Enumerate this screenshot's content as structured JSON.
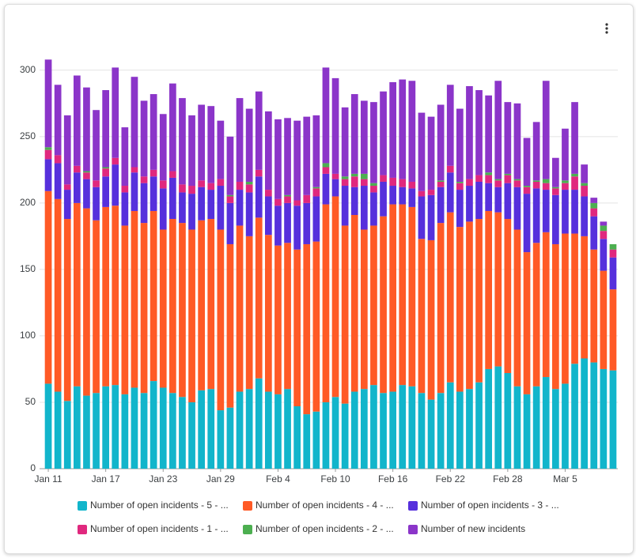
{
  "chart_data": {
    "type": "stacked-bar",
    "categories": [
      "Jan 11",
      null,
      null,
      null,
      null,
      null,
      "Jan 17",
      null,
      null,
      null,
      null,
      null,
      "Jan 23",
      null,
      null,
      null,
      null,
      null,
      "Jan 29",
      null,
      null,
      null,
      null,
      null,
      "Feb 4",
      null,
      null,
      null,
      null,
      null,
      "Feb 10",
      null,
      null,
      null,
      null,
      null,
      "Feb 16",
      null,
      null,
      null,
      null,
      null,
      "Feb 22",
      null,
      null,
      null,
      null,
      null,
      "Feb 28",
      null,
      null,
      null,
      null,
      null,
      "Mar 5",
      null,
      null,
      null,
      null,
      null
    ],
    "series": [
      {
        "name": "Number of open incidents - 5 - ...",
        "color": "#12b5cb",
        "values": [
          64,
          58,
          51,
          62,
          55,
          57,
          62,
          63,
          56,
          61,
          57,
          66,
          61,
          57,
          54,
          50,
          59,
          60,
          44,
          46,
          58,
          60,
          68,
          58,
          56,
          60,
          47,
          41,
          43,
          50,
          54,
          49,
          58,
          60,
          63,
          57,
          58,
          63,
          62,
          57,
          52,
          57,
          65,
          58,
          60,
          65,
          75,
          77,
          72,
          62,
          56,
          62,
          69,
          60,
          64,
          79,
          83,
          80,
          75,
          74
        ]
      },
      {
        "name": "Number of open incidents - 4 - ...",
        "color": "#ff5a26",
        "values": [
          145,
          145,
          137,
          138,
          141,
          130,
          135,
          135,
          127,
          133,
          128,
          128,
          119,
          131,
          131,
          130,
          128,
          128,
          136,
          123,
          125,
          115,
          121,
          118,
          112,
          110,
          118,
          128,
          128,
          149,
          151,
          134,
          133,
          120,
          120,
          133,
          141,
          136,
          135,
          116,
          120,
          128,
          128,
          124,
          126,
          123,
          119,
          116,
          116,
          118,
          107,
          108,
          109,
          109,
          113,
          98,
          92,
          85,
          74,
          61
        ]
      },
      {
        "name": "Number of open incidents - 3 - ...",
        "color": "#5630dc",
        "values": [
          24,
          27,
          22,
          23,
          22,
          25,
          23,
          31,
          25,
          29,
          30,
          26,
          31,
          31,
          23,
          27,
          25,
          22,
          33,
          31,
          27,
          33,
          31,
          29,
          30,
          30,
          33,
          31,
          34,
          23,
          13,
          30,
          21,
          33,
          25,
          26,
          14,
          13,
          14,
          32,
          34,
          27,
          30,
          28,
          27,
          28,
          21,
          19,
          27,
          32,
          44,
          41,
          32,
          37,
          33,
          33,
          30,
          25,
          24,
          24
        ]
      },
      {
        "name": "Number of open incidents - 1 - ...",
        "color": "#e0287e",
        "values": [
          7,
          6,
          4,
          5,
          5,
          5,
          6,
          5,
          5,
          4,
          5,
          5,
          6,
          5,
          6,
          6,
          5,
          5,
          5,
          5,
          6,
          6,
          5,
          5,
          5,
          5,
          4,
          6,
          6,
          5,
          4,
          5,
          8,
          5,
          5,
          5,
          6,
          6,
          5,
          4,
          4,
          4,
          5,
          5,
          5,
          5,
          6,
          5,
          6,
          5,
          5,
          5,
          5,
          5,
          5,
          10,
          8,
          6,
          6,
          6
        ]
      },
      {
        "name": "Number of open incidents - 2 - ...",
        "color": "#4caf50",
        "values": [
          2,
          0,
          0,
          0,
          1,
          0,
          1,
          0,
          0,
          0,
          0,
          0,
          0,
          0,
          0,
          0,
          0,
          0,
          0,
          1,
          0,
          2,
          0,
          0,
          0,
          1,
          0,
          0,
          1,
          3,
          0,
          2,
          2,
          4,
          2,
          0,
          0,
          0,
          0,
          0,
          0,
          1,
          0,
          1,
          0,
          0,
          2,
          1,
          1,
          1,
          1,
          1,
          3,
          1,
          2,
          2,
          2,
          4,
          4,
          4
        ]
      },
      {
        "name": "Number of new incidents",
        "color": "#8b35c9",
        "values": [
          66,
          53,
          52,
          68,
          63,
          53,
          58,
          68,
          44,
          68,
          57,
          57,
          50,
          66,
          65,
          53,
          57,
          58,
          44,
          44,
          63,
          55,
          59,
          59,
          60,
          58,
          60,
          59,
          54,
          72,
          72,
          52,
          60,
          55,
          61,
          63,
          72,
          75,
          76,
          59,
          55,
          57,
          61,
          55,
          70,
          64,
          58,
          74,
          54,
          57,
          36,
          44,
          74,
          22,
          39,
          54,
          14,
          4,
          3,
          0
        ]
      }
    ],
    "ylim": [
      0,
      310
    ],
    "yticks": [
      0,
      50,
      100,
      150,
      200,
      250,
      300
    ],
    "grid": true
  }
}
